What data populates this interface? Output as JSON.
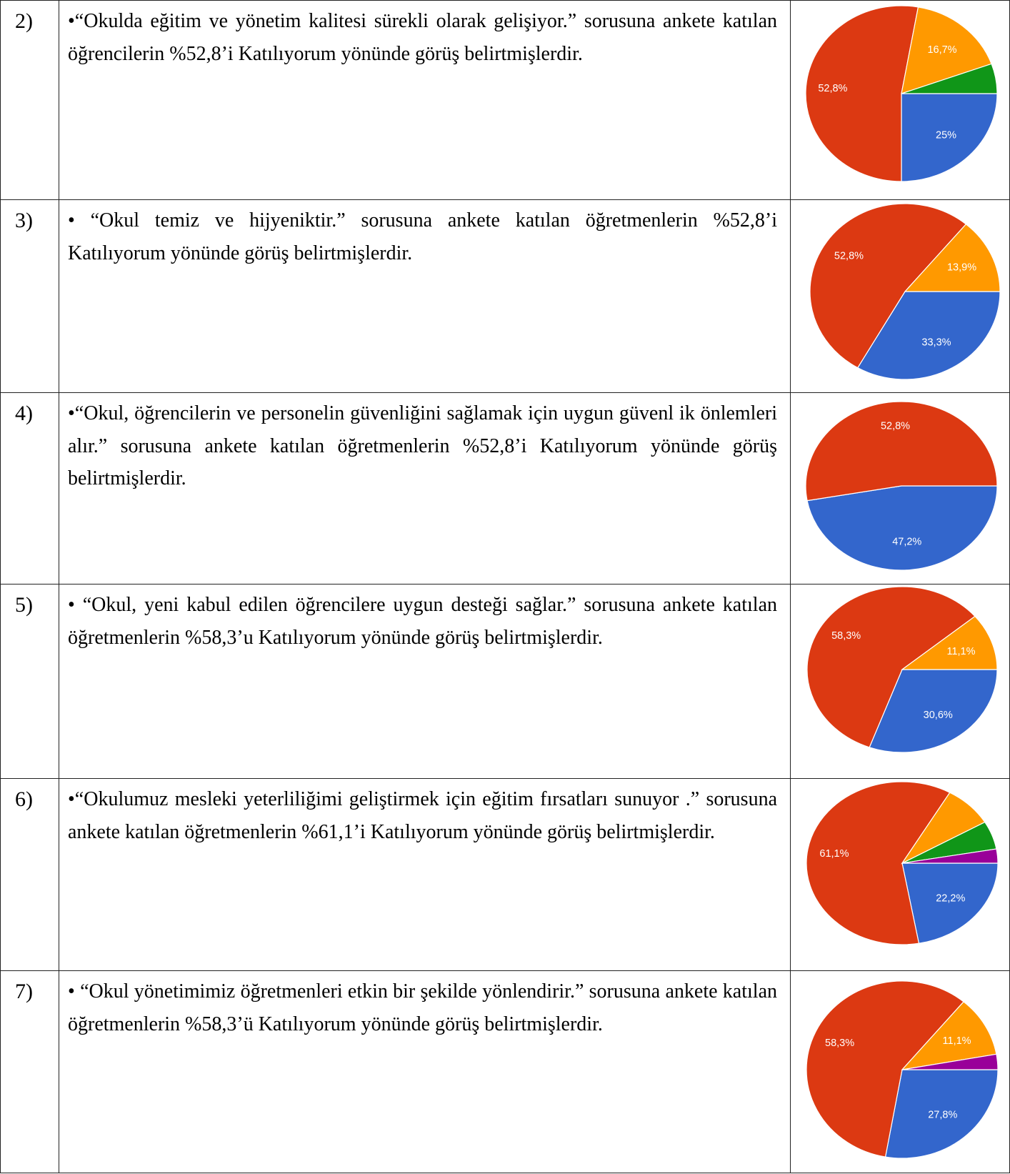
{
  "rows": [
    {
      "number": "2)",
      "text": "•“Okulda eğitim ve yönetim kalitesi sürekli olarak gelişiyor.”      sorusuna ankete katılan öğrencilerin %52,8’i Katılıyorum yönünde görüş belirtmişlerdir."
    },
    {
      "number": "3)",
      "text": "• “Okul temiz ve hijyeniktir.” sorusuna ankete katılan öğretmenlerin %52,8’i Katılıyorum yönünde görüş belirtmişlerdir."
    },
    {
      "number": "4)",
      "text": "•“Okul, öğrencilerin ve personelin güvenliğini sağlamak için uygun güvenl ik önlemleri alır.”  sorusuna ankete katılan öğretmenlerin %52,8’i Katılıyorum yönünde görüş belirtmişlerdir."
    },
    {
      "number": "5)",
      "text": "•   “Okul, yeni kabul edilen öğrencilere uygun desteği sağlar.”   sorusuna ankete katılan öğretmenlerin %58,3’u Katılıyorum yönünde görüş belirtmişlerdir."
    },
    {
      "number": "6)",
      "text": "•“Okulumuz mesleki yeterliliğimi geliştirmek için eğitim fırsatları sunuyor .” sorusuna ankete katılan öğretmenlerin %61,1’i Katılıyorum yönünde görüş belirtmişlerdir."
    },
    {
      "number": "7)",
      "text": "• “Okul yönetimimiz öğretmenleri etkin bir şekilde yönlendirir.” sorusuna ankete katılan öğretmenlerin %58,3’ü Katılıyorum yönünde görüş belirtmişlerdir."
    }
  ],
  "colors": {
    "blue": "#3366cc",
    "red": "#dc3912",
    "orange": "#ff9900",
    "green": "#109618",
    "purple": "#990099"
  },
  "chart_data": [
    {
      "type": "pie",
      "slices": [
        {
          "value": 25,
          "label": "25%",
          "color": "#3366cc"
        },
        {
          "value": 52.8,
          "label": "52,8%",
          "color": "#dc3912"
        },
        {
          "value": 16.7,
          "label": "16,7%",
          "color": "#ff9900"
        },
        {
          "value": 5.5,
          "label": "",
          "color": "#109618"
        }
      ]
    },
    {
      "type": "pie",
      "slices": [
        {
          "value": 33.3,
          "label": "33,3%",
          "color": "#3366cc"
        },
        {
          "value": 52.8,
          "label": "52,8%",
          "color": "#dc3912"
        },
        {
          "value": 13.9,
          "label": "13,9%",
          "color": "#ff9900"
        }
      ]
    },
    {
      "type": "pie",
      "slices": [
        {
          "value": 47.2,
          "label": "47,2%",
          "color": "#3366cc"
        },
        {
          "value": 52.8,
          "label": "52,8%",
          "color": "#dc3912"
        }
      ]
    },
    {
      "type": "pie",
      "slices": [
        {
          "value": 30.6,
          "label": "30,6%",
          "color": "#3366cc"
        },
        {
          "value": 58.3,
          "label": "58,3%",
          "color": "#dc3912"
        },
        {
          "value": 11.1,
          "label": "11,1%",
          "color": "#ff9900"
        }
      ]
    },
    {
      "type": "pie",
      "slices": [
        {
          "value": 22.2,
          "label": "22,2%",
          "color": "#3366cc"
        },
        {
          "value": 61.1,
          "label": "61,1%",
          "color": "#dc3912"
        },
        {
          "value": 8.3,
          "label": "",
          "color": "#ff9900"
        },
        {
          "value": 5.6,
          "label": "",
          "color": "#109618"
        },
        {
          "value": 2.8,
          "label": "",
          "color": "#990099"
        }
      ]
    },
    {
      "type": "pie",
      "slices": [
        {
          "value": 27.8,
          "label": "27,8%",
          "color": "#3366cc"
        },
        {
          "value": 58.3,
          "label": "58,3%",
          "color": "#dc3912"
        },
        {
          "value": 11.1,
          "label": "11,1%",
          "color": "#ff9900"
        },
        {
          "value": 2.8,
          "label": "",
          "color": "#990099"
        }
      ]
    }
  ]
}
